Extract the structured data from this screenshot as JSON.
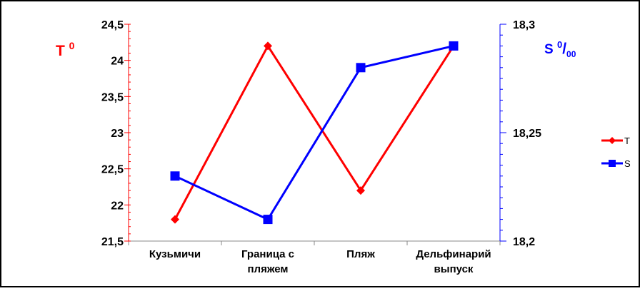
{
  "chart_data": {
    "type": "line",
    "categories": [
      [
        "Кузьмичи"
      ],
      [
        "Граница с",
        "пляжем"
      ],
      [
        "Пляж"
      ],
      [
        "Дельфинарий",
        "выпуск"
      ]
    ],
    "y_left": {
      "label": "T",
      "label_sup": "0",
      "min": 21.5,
      "max": 24.5,
      "step": 0.5,
      "ticks": [
        "21,5",
        "22",
        "22,5",
        "23",
        "23,5",
        "24",
        "24,5"
      ]
    },
    "y_right": {
      "label": "S",
      "label_sup": "0",
      "label_slash": "/",
      "label_sub": "00",
      "min": 18.2,
      "max": 18.3,
      "ticks": [
        {
          "value": 18.2,
          "label": "18,2"
        },
        {
          "value": 18.25,
          "label": "18,25"
        },
        {
          "value": 18.3,
          "label": "18,3"
        }
      ],
      "minor_step": 0.005
    },
    "series": [
      {
        "name": "T",
        "axis": "left",
        "color": "#ff0000",
        "marker": "diamond",
        "values": [
          21.8,
          24.2,
          22.2,
          24.2
        ]
      },
      {
        "name": "S",
        "axis": "right",
        "color": "#0000ff",
        "marker": "square",
        "values": [
          18.23,
          18.21,
          18.28,
          18.29
        ]
      }
    ],
    "legend_position": "right",
    "grid": false
  }
}
